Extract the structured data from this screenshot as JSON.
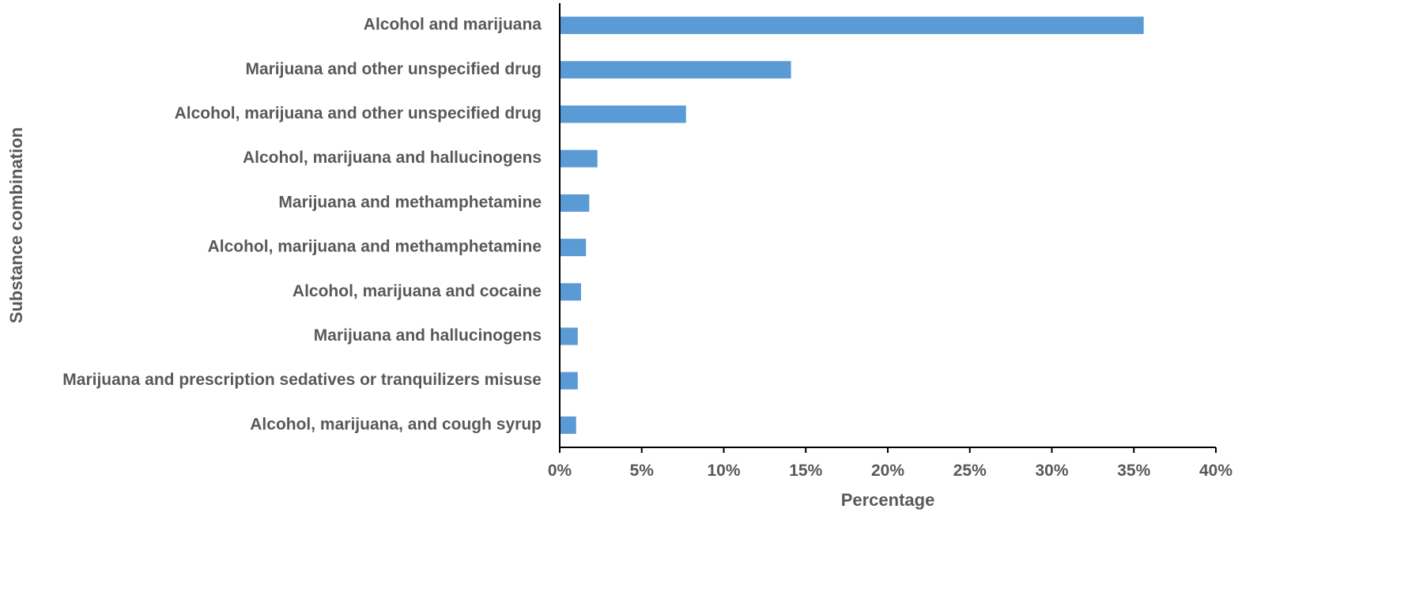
{
  "chart_data": {
    "type": "bar",
    "orientation": "horizontal",
    "title": "",
    "xlabel": "Percentage",
    "ylabel": "Substance combination",
    "categories": [
      "Alcohol and marijuana",
      "Marijuana and other unspecified drug",
      "Alcohol, marijuana and other unspecified drug",
      "Alcohol, marijuana and hallucinogens",
      "Marijuana and methamphetamine",
      "Alcohol, marijuana and methamphetamine",
      "Alcohol, marijuana and cocaine",
      "Marijuana and hallucinogens",
      "Marijuana and prescription sedatives or tranquilizers misuse",
      "Alcohol, marijuana, and cough syrup"
    ],
    "values": [
      35.6,
      14.1,
      7.7,
      2.3,
      1.8,
      1.6,
      1.3,
      1.1,
      1.1,
      1.0
    ],
    "xlim": [
      0,
      40
    ],
    "xticks": [
      0,
      5,
      10,
      15,
      20,
      25,
      30,
      35,
      40
    ],
    "xtick_labels": [
      "0%",
      "5%",
      "10%",
      "15%",
      "20%",
      "25%",
      "30%",
      "35%",
      "40%"
    ],
    "grid": false,
    "legend": "none",
    "colors": {
      "bar": "#5b9bd5",
      "axis": "#000000",
      "text": "#595959"
    }
  }
}
